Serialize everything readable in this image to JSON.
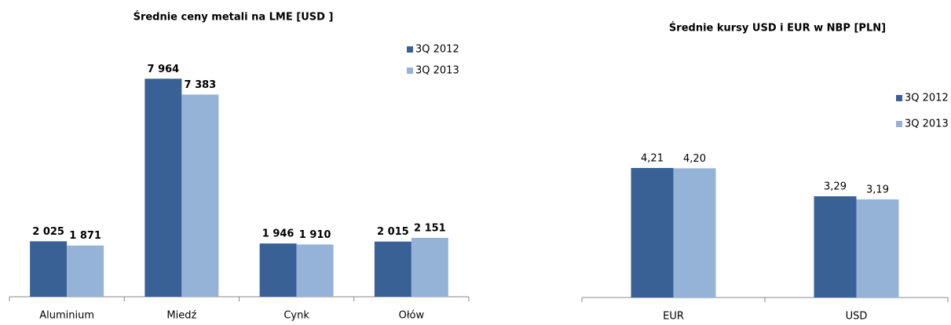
{
  "chart_data": [
    {
      "type": "bar",
      "title": "Średnie ceny metali na LME [USD ]",
      "categories": [
        "Aluminium",
        "Miedź",
        "Cynk",
        "Ołów"
      ],
      "series": [
        {
          "name": "3Q 2012",
          "color": "#3a6195",
          "values": [
            2025,
            7964,
            1946,
            2015
          ],
          "value_labels": [
            "2 025",
            "7 964",
            "1 946",
            "2 015"
          ]
        },
        {
          "name": "3Q 2013",
          "color": "#95b3d7",
          "values": [
            1871,
            7383,
            1910,
            2151
          ],
          "value_labels": [
            "1 871",
            "7 383",
            "1 910",
            "2 151"
          ]
        }
      ],
      "ylim": [
        0,
        8000
      ],
      "legend": "top-right"
    },
    {
      "type": "bar",
      "title": "Średnie kursy USD i EUR w NBP [PLN]",
      "categories": [
        "EUR",
        "USD"
      ],
      "series": [
        {
          "name": "3Q 2012",
          "color": "#3a6195",
          "values": [
            4.21,
            3.29
          ],
          "value_labels": [
            "4,21",
            "3,29"
          ]
        },
        {
          "name": "3Q 2013",
          "color": "#95b3d7",
          "values": [
            4.2,
            3.19
          ],
          "value_labels": [
            "4,20",
            "3,19"
          ]
        }
      ],
      "ylim": [
        0,
        5
      ],
      "legend": "top-right"
    }
  ]
}
